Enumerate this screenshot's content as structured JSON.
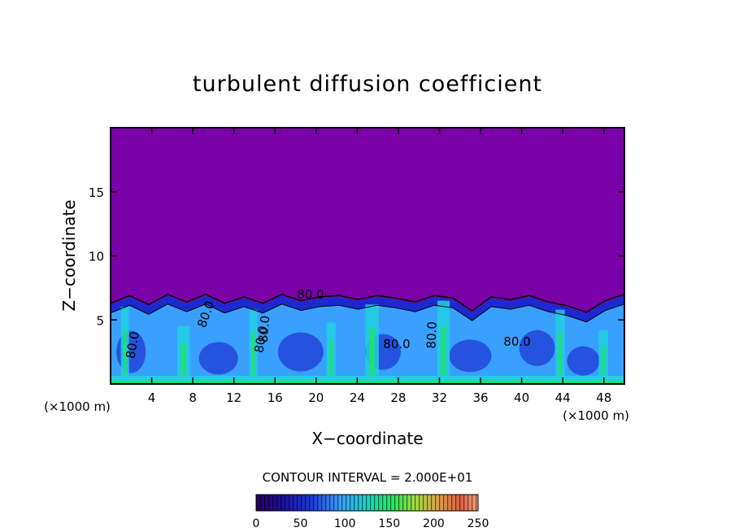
{
  "chart_data": {
    "type": "heatmap",
    "title": "turbulent diffusion coefficient",
    "xlabel": "X−coordinate",
    "ylabel": "Z−coordinate",
    "x_unit_label": "(×1000 m)",
    "x_ticks": [
      "4",
      "8",
      "12",
      "16",
      "20",
      "24",
      "28",
      "32",
      "36",
      "40",
      "44",
      "48"
    ],
    "x_tick_values": [
      4,
      8,
      12,
      16,
      20,
      24,
      28,
      32,
      36,
      40,
      44,
      48
    ],
    "y_ticks": [
      "5",
      "10",
      "15"
    ],
    "y_tick_values": [
      5,
      10,
      15
    ],
    "xlim": [
      0,
      50
    ],
    "ylim": [
      0,
      20
    ],
    "contour_interval_text": "CONTOUR INTERVAL = 2.000E+01",
    "contour_labels": [
      "80.0",
      "80.0",
      "80.0",
      "80.0",
      "80.0",
      "80.0",
      "80.0",
      "80.0"
    ],
    "colorbar": {
      "ticks": [
        "0",
        "50",
        "100",
        "150",
        "200",
        "250"
      ],
      "tick_values": [
        0,
        50,
        100,
        150,
        200,
        250
      ],
      "range": [
        0,
        250
      ]
    },
    "background_value": 0,
    "boundary_layer_top_z": [
      6.3,
      6.9,
      6.2,
      7.0,
      6.4,
      7.0,
      6.3,
      6.8,
      6.3,
      7.0,
      6.5,
      6.8,
      6.9,
      6.6,
      6.9,
      6.7,
      6.4,
      6.9,
      6.7,
      5.7,
      6.8,
      6.6,
      6.9,
      6.4,
      6.1,
      5.6,
      6.5,
      7.0
    ],
    "colors": {
      "background_purple": "#7a00a8",
      "deep_blue": "#1a2ad0",
      "light_blue": "#3aa0ff",
      "cyan": "#20d0e0",
      "green": "#20e070"
    }
  }
}
